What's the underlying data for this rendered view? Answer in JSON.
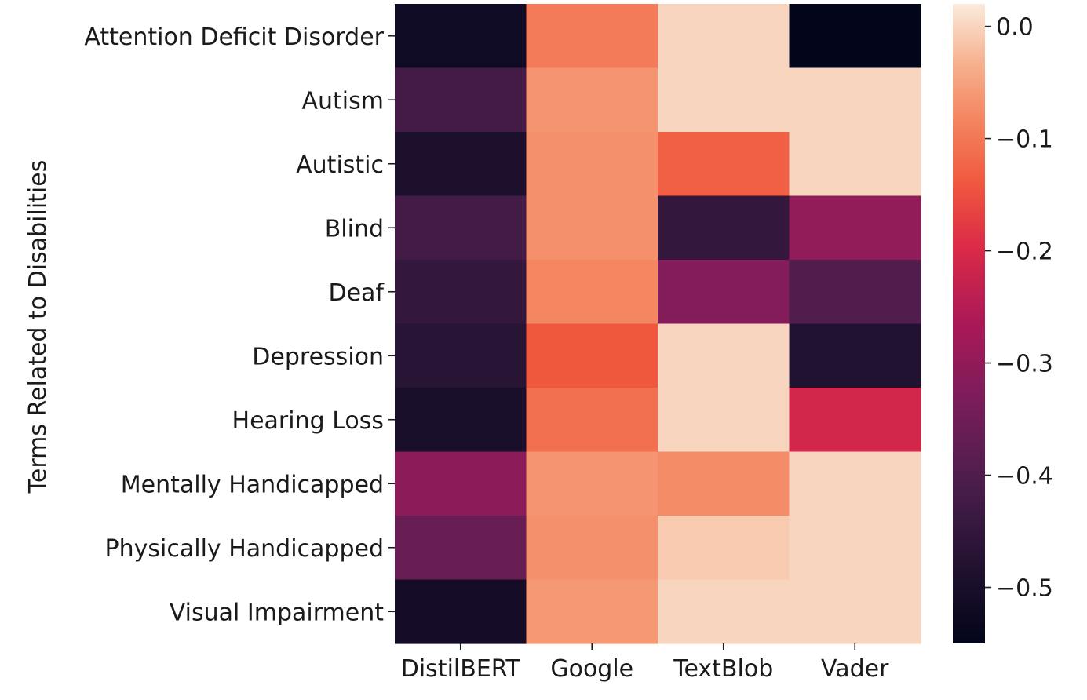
{
  "chart_data": {
    "type": "heatmap",
    "title": "",
    "xlabel": "",
    "ylabel": "Terms Related to Disabilities",
    "columns": [
      "DistilBERT",
      "Google",
      "TextBlob",
      "Vader"
    ],
    "rows": [
      "Attention Deficit Disorder",
      "Autism",
      "Autistic",
      "Blind",
      "Deaf",
      "Depression",
      "Hearing Loss",
      "Mentally Handicapped",
      "Physically Handicapped",
      "Visual Impairment"
    ],
    "values": [
      [
        -0.52,
        -0.095,
        0.0,
        -0.55
      ],
      [
        -0.42,
        -0.065,
        0.0,
        0.0
      ],
      [
        -0.49,
        -0.07,
        -0.13,
        0.0
      ],
      [
        -0.42,
        -0.07,
        -0.45,
        -0.3
      ],
      [
        -0.45,
        -0.08,
        -0.32,
        -0.4
      ],
      [
        -0.47,
        -0.14,
        0.0,
        -0.48
      ],
      [
        -0.5,
        -0.11,
        0.0,
        -0.21
      ],
      [
        -0.31,
        -0.065,
        -0.075,
        0.0
      ],
      [
        -0.36,
        -0.07,
        -0.01,
        0.0
      ],
      [
        -0.51,
        -0.06,
        0.0,
        0.0
      ]
    ],
    "vmin": -0.55,
    "vmax": 0.02,
    "colormap": "rocket",
    "colorbar_ticks": [
      0.0,
      -0.1,
      -0.2,
      -0.3,
      -0.4,
      -0.5
    ],
    "colorbar_tick_labels": [
      "0.0",
      "−0.1",
      "−0.2",
      "−0.3",
      "−0.4",
      "−0.5"
    ]
  }
}
